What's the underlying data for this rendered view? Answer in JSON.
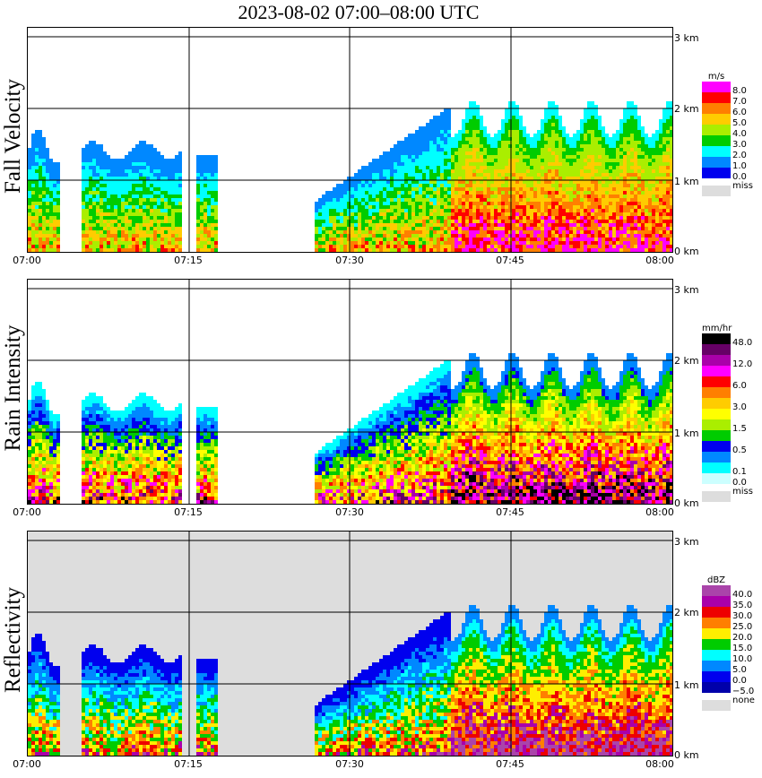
{
  "title": "2023-08-02   07:00–08:00 UTC",
  "chart_data": [
    {
      "type": "heatmap",
      "ylabel": "Fall Velocity",
      "unit": "m/s",
      "x_ticks": [
        "07:00",
        "07:15",
        "07:30",
        "07:45",
        "08:00"
      ],
      "y_ticks": [
        "0 km",
        "1 km",
        "2 km",
        "3 km"
      ],
      "xlim": [
        "07:00",
        "08:00"
      ],
      "ylim_km": [
        0,
        3.0
      ],
      "grid": true,
      "legend_placement": "right",
      "legend_levels": [
        "8.0",
        "7.0",
        "6.0",
        "5.0",
        "4.0",
        "3.0",
        "2.0",
        "1.0",
        "0.0"
      ],
      "legend_colors": [
        "#ff00ff",
        "#ff0000",
        "#ff7f00",
        "#ffcc00",
        "#aaee00",
        "#00cc00",
        "#00ffff",
        "#0088ff",
        "#0000ee"
      ],
      "missing_label": "miss",
      "missing_color": "#dddddd",
      "background_color": "#ffffff"
    },
    {
      "type": "heatmap",
      "ylabel": "Rain Intensity",
      "unit": "mm/hr",
      "x_ticks": [
        "07:00",
        "07:15",
        "07:30",
        "07:45",
        "08:00"
      ],
      "y_ticks": [
        "0 km",
        "1 km",
        "2 km",
        "3 km"
      ],
      "xlim": [
        "07:00",
        "08:00"
      ],
      "ylim_km": [
        0,
        3.0
      ],
      "grid": true,
      "legend_placement": "right",
      "legend_levels": [
        "48.0",
        "",
        "12.0",
        "",
        "6.0",
        "",
        "3.0",
        "",
        "1.5",
        "",
        "0.5",
        "",
        "0.1",
        "0.0"
      ],
      "legend_colors": [
        "#000000",
        "#660066",
        "#aa00aa",
        "#ff00ff",
        "#ff0000",
        "#ff7f00",
        "#ffcc00",
        "#ffff00",
        "#aaee00",
        "#00cc00",
        "#0000ee",
        "#0088ff",
        "#00ffff",
        "#ccffff"
      ],
      "missing_label": "miss",
      "missing_color": "#dddddd",
      "background_color": "#ffffff"
    },
    {
      "type": "heatmap",
      "ylabel": "Reflectivity",
      "unit": "dBZ",
      "x_ticks": [
        "07:00",
        "07:15",
        "07:30",
        "07:45",
        "08:00"
      ],
      "y_ticks": [
        "0 km",
        "1 km",
        "2 km",
        "3 km"
      ],
      "xlim": [
        "07:00",
        "08:00"
      ],
      "ylim_km": [
        0,
        3.0
      ],
      "grid": true,
      "legend_placement": "right",
      "legend_levels": [
        "40.0",
        "35.0",
        "30.0",
        "25.0",
        "20.0",
        "15.0",
        "10.0",
        "5.0",
        "0.0",
        "−5.0"
      ],
      "legend_colors": [
        "#aa44aa",
        "#aa00aa",
        "#ee0000",
        "#ff7f00",
        "#ffee00",
        "#00cc00",
        "#00ffff",
        "#0088ff",
        "#0000ee",
        "#0000aa"
      ],
      "missing_label": "none",
      "missing_color": "#dddddd",
      "background_color": "#dddddd"
    }
  ]
}
